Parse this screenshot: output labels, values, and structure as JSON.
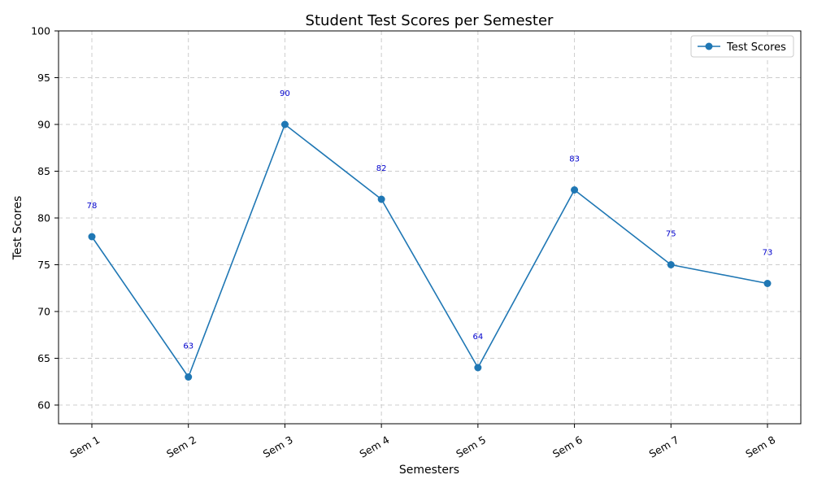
{
  "chart_data": {
    "type": "line",
    "title": "Student Test Scores per Semester",
    "xlabel": "Semesters",
    "ylabel": "Test Scores",
    "categories": [
      "Sem 1",
      "Sem 2",
      "Sem 3",
      "Sem 4",
      "Sem 5",
      "Sem 6",
      "Sem 7",
      "Sem 8"
    ],
    "series": [
      {
        "name": "Test Scores",
        "values": [
          78,
          63,
          90,
          82,
          64,
          83,
          75,
          73
        ],
        "color": "#1f77b4",
        "marker": "circle"
      }
    ],
    "ylim": [
      58,
      100
    ],
    "yticks": [
      60,
      65,
      70,
      75,
      80,
      85,
      90,
      95,
      100
    ],
    "grid": true,
    "legend_position": "top-right",
    "data_label_color": "#0000cc",
    "xtick_rotation_deg": 30
  }
}
